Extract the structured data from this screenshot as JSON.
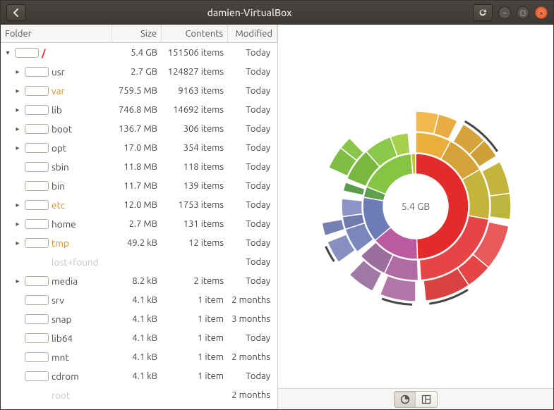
{
  "window": {
    "title": "damien-VirtualBox"
  },
  "headers": {
    "folder": "Folder",
    "size": "Size",
    "contents": "Contents",
    "modified": "Modified"
  },
  "root": {
    "name": "/",
    "size": "5.4 GB",
    "contents": "151506 items",
    "modified": "Today",
    "color": "#e22b2b",
    "name_color": "#e22b2b",
    "fill": 1.0,
    "expander": "down"
  },
  "rows": [
    {
      "name": "usr",
      "size": "2.7 GB",
      "contents": "124827 items",
      "modified": "Today",
      "color": "#f5cf3a",
      "name_color": "#444",
      "fill": 0.5,
      "expander": "right"
    },
    {
      "name": "var",
      "size": "759.5 MB",
      "contents": "9163 items",
      "modified": "Today",
      "color": "#6fbb3a",
      "name_color": "#d58b1e",
      "fill": 0.14,
      "expander": "right"
    },
    {
      "name": "lib",
      "size": "746.8 MB",
      "contents": "14692 items",
      "modified": "Today",
      "color": "#6fbb3a",
      "name_color": "#444",
      "fill": 0.14,
      "expander": "right"
    },
    {
      "name": "boot",
      "size": "136.7 MB",
      "contents": "306 items",
      "modified": "Today",
      "color": "#888",
      "name_color": "#444",
      "fill": 0.03,
      "expander": "right"
    },
    {
      "name": "opt",
      "size": "17.0 MB",
      "contents": "354 items",
      "modified": "Today",
      "color": "#888",
      "name_color": "#444",
      "fill": 0.01,
      "expander": "right"
    },
    {
      "name": "sbin",
      "size": "11.8 MB",
      "contents": "118 items",
      "modified": "Today",
      "color": "#888",
      "name_color": "#444",
      "fill": 0.01,
      "expander": ""
    },
    {
      "name": "bin",
      "size": "11.7 MB",
      "contents": "139 items",
      "modified": "Today",
      "color": "#888",
      "name_color": "#444",
      "fill": 0.01,
      "expander": ""
    },
    {
      "name": "etc",
      "size": "12.0 MB",
      "contents": "1753 items",
      "modified": "Today",
      "color": "#888",
      "name_color": "#d58b1e",
      "fill": 0.01,
      "expander": "right"
    },
    {
      "name": "home",
      "size": "2.7 MB",
      "contents": "131 items",
      "modified": "Today",
      "color": "#888",
      "name_color": "#444",
      "fill": 0.005,
      "expander": "right"
    },
    {
      "name": "tmp",
      "size": "49.2 kB",
      "contents": "12 items",
      "modified": "Today",
      "color": "#888",
      "name_color": "#d58b1e",
      "fill": 0.005,
      "expander": "right"
    },
    {
      "name": "lost+found",
      "size": "",
      "contents": "",
      "modified": "Today",
      "color": "",
      "name_color": "#c9c6bf",
      "fill": 0,
      "expander": "",
      "no_bar": true
    },
    {
      "name": "media",
      "size": "8.2 kB",
      "contents": "2 items",
      "modified": "Today",
      "color": "#888",
      "name_color": "#444",
      "fill": 0.005,
      "expander": "right"
    },
    {
      "name": "srv",
      "size": "4.1 kB",
      "contents": "1 item",
      "modified": "2 months",
      "color": "#888",
      "name_color": "#444",
      "fill": 0.005,
      "expander": ""
    },
    {
      "name": "snap",
      "size": "4.1 kB",
      "contents": "1 item",
      "modified": "3 months",
      "color": "#888",
      "name_color": "#444",
      "fill": 0.005,
      "expander": ""
    },
    {
      "name": "lib64",
      "size": "4.1 kB",
      "contents": "1 item",
      "modified": "Today",
      "color": "#888",
      "name_color": "#444",
      "fill": 0.005,
      "expander": ""
    },
    {
      "name": "mnt",
      "size": "4.1 kB",
      "contents": "1 item",
      "modified": "2 months",
      "color": "#888",
      "name_color": "#444",
      "fill": 0.005,
      "expander": ""
    },
    {
      "name": "cdrom",
      "size": "4.1 kB",
      "contents": "1 item",
      "modified": "Today",
      "color": "#888",
      "name_color": "#444",
      "fill": 0.005,
      "expander": ""
    },
    {
      "name": "root",
      "size": "",
      "contents": "",
      "modified": "2 months",
      "color": "",
      "name_color": "#c9c6bf",
      "fill": 0,
      "expander": "",
      "no_bar": true
    }
  ],
  "chart": {
    "center_label": "5.4 GB",
    "inner_radius": 46,
    "ring_width": 30,
    "background": "#ffffff",
    "stroke": "#ffffff",
    "rings": [
      [
        {
          "a0": 0,
          "a1": 178,
          "c": "#e22b2b"
        },
        {
          "a0": 178,
          "a1": 230,
          "c": "#bb5aa0"
        },
        {
          "a0": 230,
          "a1": 280,
          "c": "#6d7bb7"
        },
        {
          "a0": 280,
          "a1": 292,
          "c": "#5fa04c"
        },
        {
          "a0": 292,
          "a1": 355,
          "c": "#86c443"
        },
        {
          "a0": 355,
          "a1": 360,
          "c": "#c7c13b"
        }
      ],
      [
        {
          "a0": 0,
          "a1": 28,
          "c": "#ecae3a"
        },
        {
          "a0": 28,
          "a1": 60,
          "c": "#d6a23a"
        },
        {
          "a0": 60,
          "a1": 100,
          "c": "#c4b43c"
        },
        {
          "a0": 100,
          "a1": 176,
          "c": "#e74545"
        },
        {
          "a0": 178,
          "a1": 205,
          "c": "#b06aa4"
        },
        {
          "a0": 205,
          "a1": 228,
          "c": "#9b6e9f"
        },
        {
          "a0": 232,
          "a1": 252,
          "c": "#7a87bd"
        },
        {
          "a0": 252,
          "a1": 262,
          "c": "#6f7aad"
        },
        {
          "a0": 262,
          "a1": 276,
          "c": "#8a94c6"
        },
        {
          "a0": 282,
          "a1": 289,
          "c": "#5d9c4a"
        },
        {
          "a0": 292,
          "a1": 318,
          "c": "#78b83f"
        },
        {
          "a0": 318,
          "a1": 340,
          "c": "#8cc94a"
        },
        {
          "a0": 340,
          "a1": 354,
          "c": "#a6cf4e"
        }
      ],
      [
        {
          "a0": 0,
          "a1": 14,
          "c": "#f2b84e"
        },
        {
          "a0": 14,
          "a1": 26,
          "c": "#e8ac42"
        },
        {
          "a0": 30,
          "a1": 46,
          "c": "#d6a23a"
        },
        {
          "a0": 46,
          "a1": 58,
          "c": "#cda038"
        },
        {
          "a0": 62,
          "a1": 82,
          "c": "#c4b43c"
        },
        {
          "a0": 82,
          "a1": 98,
          "c": "#bdb63e"
        },
        {
          "a0": 102,
          "a1": 130,
          "c": "#e85a5a"
        },
        {
          "a0": 130,
          "a1": 146,
          "c": "#e74545"
        },
        {
          "a0": 146,
          "a1": 174,
          "c": "#d84242"
        },
        {
          "a0": 180,
          "a1": 202,
          "c": "#b577aa"
        },
        {
          "a0": 207,
          "a1": 224,
          "c": "#a078a4"
        },
        {
          "a0": 234,
          "a1": 248,
          "c": "#8691c2"
        },
        {
          "a0": 252,
          "a1": 260,
          "c": "#7580b3"
        },
        {
          "a0": 294,
          "a1": 308,
          "c": "#7fbd45"
        },
        {
          "a0": 308,
          "a1": 316,
          "c": "#8ac54b"
        }
      ],
      [
        {
          "a0": 30,
          "a1": 56,
          "c": "#444444",
          "thin": true
        },
        {
          "a0": 148,
          "a1": 172,
          "c": "#444444",
          "thin": true
        },
        {
          "a0": 182,
          "a1": 200,
          "c": "#444444",
          "thin": true
        },
        {
          "a0": 236,
          "a1": 246,
          "c": "#444444",
          "thin": true
        }
      ]
    ]
  }
}
